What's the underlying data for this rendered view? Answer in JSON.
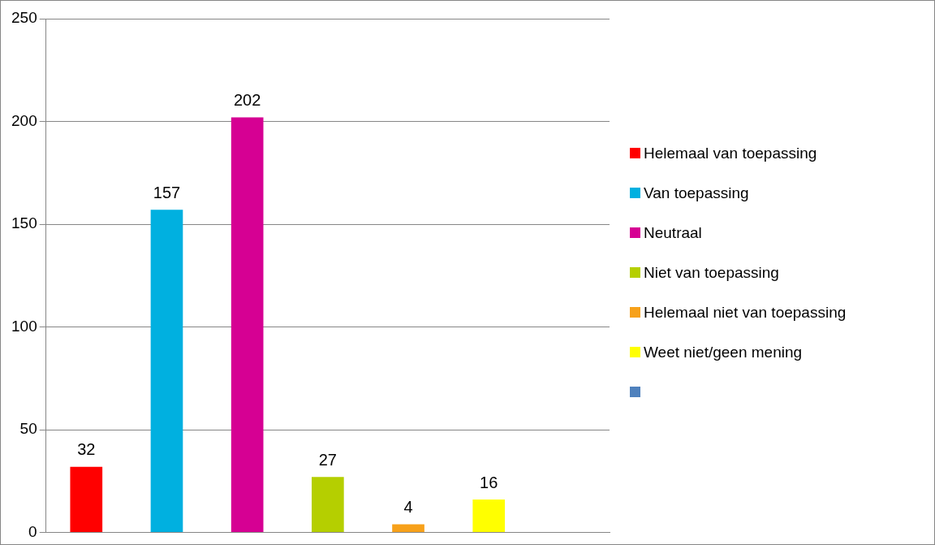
{
  "chart_data": {
    "type": "bar",
    "categories": [
      null,
      null,
      null,
      null,
      null,
      null,
      null
    ],
    "series": [
      {
        "name": "Helemaal van toepassing",
        "color": "#ff0000",
        "values": [
          32,
          null,
          null,
          null,
          null,
          null,
          null
        ]
      },
      {
        "name": "Van toepassing",
        "color": "#00b0e0",
        "values": [
          null,
          157,
          null,
          null,
          null,
          null,
          null
        ]
      },
      {
        "name": "Neutraal",
        "color": "#d60093",
        "values": [
          null,
          null,
          202,
          null,
          null,
          null,
          null
        ]
      },
      {
        "name": "Niet van toepassing",
        "color": "#b5cf00",
        "values": [
          null,
          null,
          null,
          27,
          null,
          null,
          null
        ]
      },
      {
        "name": "Helemaal niet van toepassing",
        "color": "#f7a11a",
        "values": [
          null,
          null,
          null,
          null,
          4,
          null,
          null
        ]
      },
      {
        "name": "Weet niet/geen mening",
        "color": "#ffff00",
        "values": [
          null,
          null,
          null,
          null,
          null,
          16,
          null
        ]
      },
      {
        "color": "#4f81bd",
        "values": [
          null,
          null,
          null,
          null,
          null,
          null,
          null
        ]
      }
    ],
    "ylim": [
      0,
      250
    ],
    "yticks": [
      0,
      50,
      100,
      150,
      200,
      250
    ],
    "grid": "y",
    "legend": "right",
    "data_labels": true
  }
}
